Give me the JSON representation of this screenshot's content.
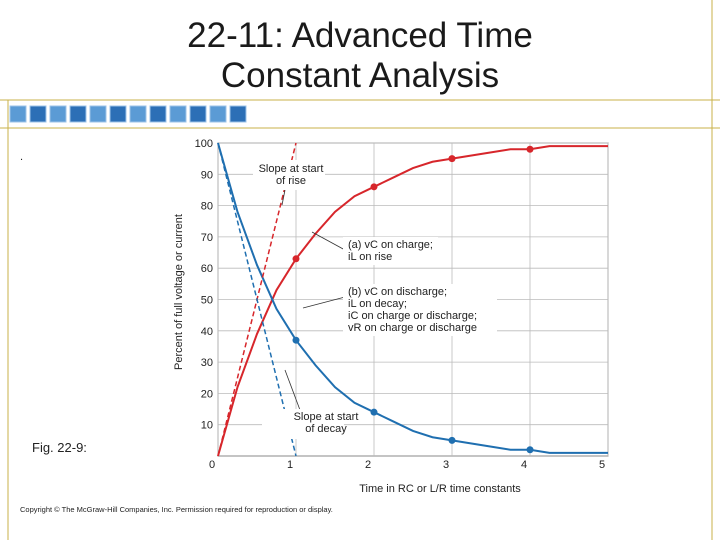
{
  "slide": {
    "title": "22-11: Advanced Time Constant Analysis",
    "bullet": ".",
    "caption": "Fig. 22-9:",
    "copyright": "Copyright © The McGraw-Hill Companies, Inc. Permission required for reproduction or display."
  },
  "chart_data": {
    "type": "line",
    "xlabel": "Time in RC or L/R time constants",
    "ylabel": "Percent of full voltage or current",
    "xlim": [
      0,
      5
    ],
    "ylim": [
      0,
      100
    ],
    "xticks": [
      0,
      1,
      2,
      3,
      4,
      5
    ],
    "yticks": [
      10,
      20,
      30,
      40,
      50,
      60,
      70,
      80,
      90,
      100
    ],
    "grid": true,
    "series": [
      {
        "color": "#d7262b",
        "style": "solid",
        "x": [
          0,
          0.25,
          0.5,
          0.75,
          1,
          1.25,
          1.5,
          1.75,
          2,
          2.25,
          2.5,
          2.75,
          3,
          3.25,
          3.5,
          3.75,
          4,
          4.25,
          4.5,
          4.75,
          5
        ],
        "values": [
          0,
          22,
          39,
          53,
          63,
          71,
          78,
          83,
          86,
          89,
          92,
          94,
          95,
          96,
          97,
          98,
          98,
          99,
          99,
          99,
          99
        ]
      },
      {
        "color": "#1f6fb0",
        "style": "solid",
        "x": [
          0,
          0.25,
          0.5,
          0.75,
          1,
          1.25,
          1.5,
          1.75,
          2,
          2.25,
          2.5,
          2.75,
          3,
          3.25,
          3.5,
          3.75,
          4,
          4.25,
          4.5,
          4.75,
          5
        ],
        "values": [
          100,
          78,
          61,
          47,
          37,
          29,
          22,
          17,
          14,
          11,
          8,
          6,
          5,
          4,
          3,
          2,
          2,
          1,
          1,
          1,
          1
        ]
      },
      {
        "color": "#d7262b",
        "style": "dashed",
        "x": [
          0,
          1
        ],
        "values": [
          0,
          100
        ]
      },
      {
        "color": "#1f6fb0",
        "style": "dashed",
        "x": [
          0,
          1
        ],
        "values": [
          100,
          0
        ]
      },
      {
        "color": "#d7262b",
        "style": "markers",
        "x": [
          1,
          2,
          3,
          4
        ],
        "values": [
          63,
          86,
          95,
          98
        ]
      },
      {
        "color": "#1f6fb0",
        "style": "markers",
        "x": [
          1,
          2,
          3,
          4
        ],
        "values": [
          37,
          14,
          5,
          2
        ]
      }
    ],
    "annotations": [
      {
        "lines": [
          "Slope at start",
          "of rise"
        ]
      },
      {
        "lines": [
          "(a) vC on charge;",
          "iL on rise"
        ]
      },
      {
        "lines": [
          "(b) vC on discharge;",
          "iL on decay;",
          "iC on charge or discharge;",
          "vR on charge or discharge"
        ]
      },
      {
        "lines": [
          "Slope at start",
          "of decay"
        ]
      }
    ]
  }
}
